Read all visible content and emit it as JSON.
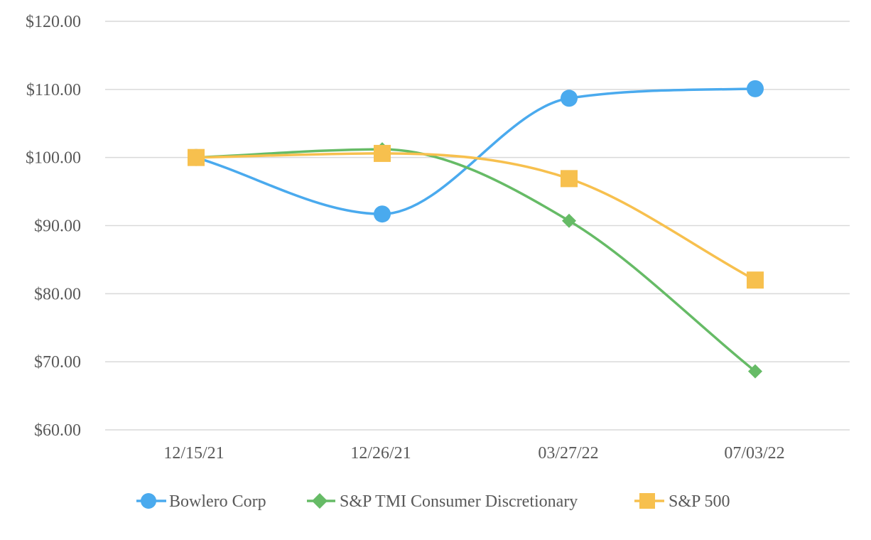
{
  "chart_data": {
    "type": "line",
    "title": "",
    "xlabel": "",
    "ylabel": "",
    "categories": [
      "12/15/21",
      "12/26/21",
      "03/27/22",
      "07/03/22"
    ],
    "ylim": [
      60,
      120
    ],
    "yticks": [
      60,
      70,
      80,
      90,
      100,
      110,
      120
    ],
    "ytick_labels": [
      "$60.00",
      "$70.00",
      "$80.00",
      "$90.00",
      "$100.00",
      "$110.00",
      "$120.00"
    ],
    "grid": true,
    "smooth": true,
    "legend_position": "bottom-center",
    "series": [
      {
        "name": "Bowlero Corp",
        "values": [
          100.0,
          91.7,
          108.7,
          110.1
        ],
        "color": "#4aaaee",
        "marker": "circle"
      },
      {
        "name": "S&P TMI Consumer Discretionary",
        "values": [
          100.0,
          101.2,
          90.7,
          68.6
        ],
        "color": "#66bb66",
        "marker": "diamond"
      },
      {
        "name": "S&P 500",
        "values": [
          100.0,
          100.6,
          96.9,
          82.0
        ],
        "color": "#f7c04e",
        "marker": "square"
      }
    ]
  }
}
